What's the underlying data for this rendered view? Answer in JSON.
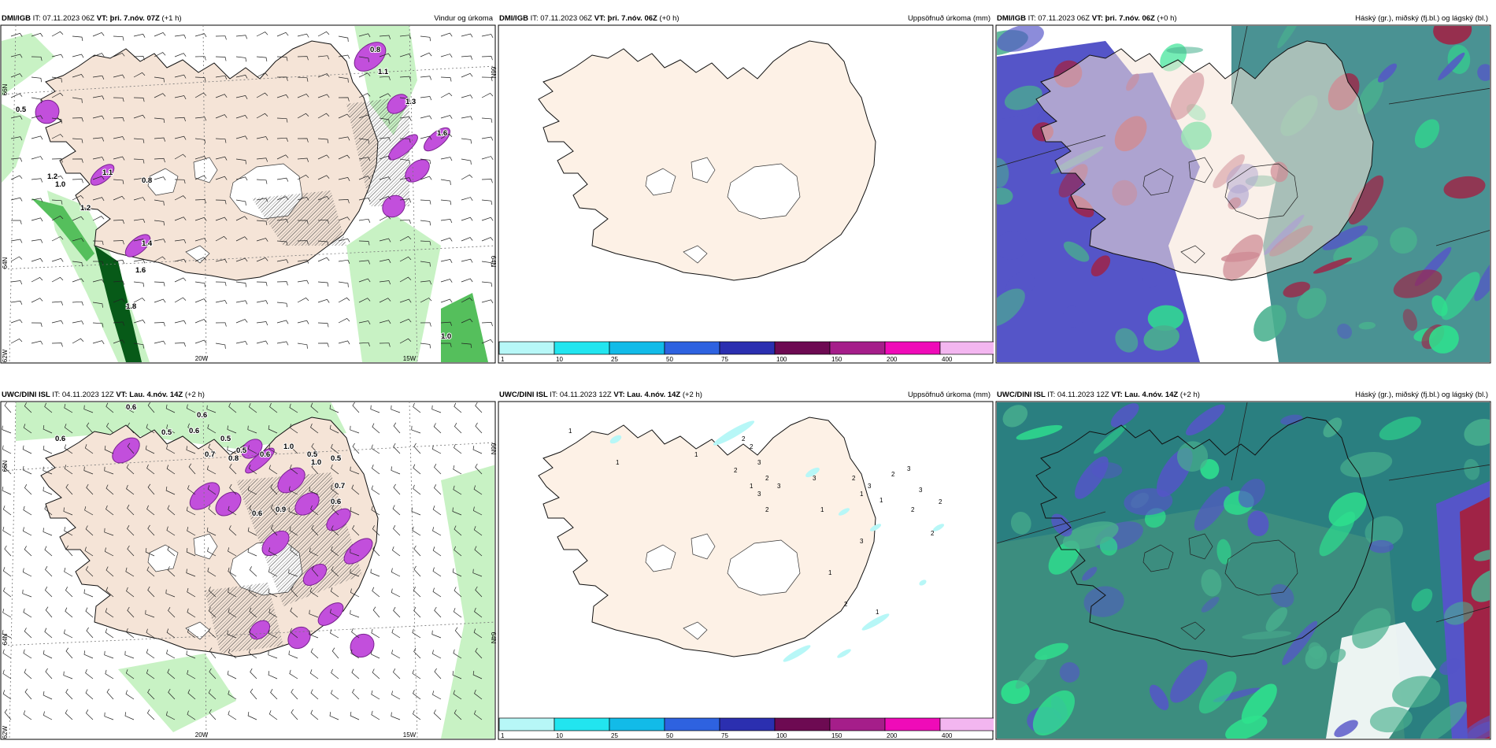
{
  "panels": [
    {
      "id": "p1",
      "kind": "wind",
      "header": {
        "model": "DMI/IGB",
        "it": "IT: 07.11.2023 06Z",
        "vt": "VT: þri. 7.nóv. 07Z",
        "lead": "(+1 h)",
        "product": "Vindur og úrkoma"
      },
      "lon_labels": [
        "20W",
        "15W"
      ],
      "lat_labels_left": [
        "66N",
        "64N",
        "62W"
      ],
      "lat_labels_right": [
        "66N",
        "64N"
      ],
      "values": [
        "0.8",
        "1.1",
        "0.5",
        "1.6",
        "1.1",
        "0.8",
        "1.0",
        "1.2",
        "1.6",
        "1.8",
        "1.4",
        "1.0",
        "1.2",
        "1.3"
      ]
    },
    {
      "id": "p2",
      "kind": "accum",
      "header": {
        "model": "DMI/IGB",
        "it": "IT: 07.11.2023 06Z",
        "vt": "VT: þri. 7.nóv. 06Z",
        "lead": "(+0 h)",
        "product": "Uppsöfnuð úrkoma (mm)"
      },
      "values": []
    },
    {
      "id": "p3",
      "kind": "cloud",
      "header": {
        "model": "DMI/IGB",
        "it": "IT: 07.11.2023 06Z",
        "vt": "VT: þri. 7.nóv. 06Z",
        "lead": "(+0 h)",
        "product": "Háský (gr.), miðský (fj.bl.) og lágský (bl.)"
      }
    },
    {
      "id": "p4",
      "kind": "wind",
      "header": {
        "model": "UWC/DINI ISL",
        "it": "IT: 04.11.2023 12Z",
        "vt": "VT: Lau. 4.nóv. 14Z",
        "lead": "(+2 h)",
        "product": ""
      },
      "lon_labels": [
        "20W",
        "15W"
      ],
      "lat_labels_left": [
        "66N",
        "64N",
        "62W"
      ],
      "lat_labels_right": [
        "66N",
        "64N"
      ],
      "values": [
        "0.6",
        "0.6",
        "0.6",
        "0.5",
        "0.6",
        "0.5",
        "0.7",
        "0.8",
        "0.5",
        "0.6",
        "1.0",
        "0.5",
        "0.5",
        "1.0",
        "0.6",
        "0.9",
        "0.7",
        "0.6"
      ]
    },
    {
      "id": "p5",
      "kind": "accum",
      "header": {
        "model": "UWC/DINI ISL",
        "it": "IT: 04.11.2023 12Z",
        "vt": "VT: Lau. 4.nóv. 14Z",
        "lead": "(+2 h)",
        "product": "Uppsöfnuð úrkoma (mm)"
      },
      "values": [
        "1",
        "1",
        "1",
        "2",
        "2",
        "3",
        "2",
        "3",
        "3",
        "2",
        "2",
        "1",
        "3",
        "1",
        "2",
        "1",
        "3",
        "2",
        "1",
        "3",
        "3",
        "2",
        "2",
        "2",
        "3",
        "1",
        "2",
        "1"
      ]
    },
    {
      "id": "p6",
      "kind": "cloud",
      "header": {
        "model": "UWC/DINI ISL",
        "it": "IT: 04.11.2023 12Z",
        "vt": "VT: Lau. 4.nóv. 14Z",
        "lead": "(+2 h)",
        "product": "Háský (gr.), miðský (fj.bl.) og lágský (bl.)"
      }
    }
  ],
  "colorbar": {
    "labels": [
      "1",
      "10",
      "25",
      "50",
      "75",
      "100",
      "150",
      "200",
      "400"
    ],
    "colors": [
      "#b7f7f7",
      "#22e5ef",
      "#12bbe8",
      "#2e62e0",
      "#2b2fb0",
      "#6d0a52",
      "#a51e8a",
      "#ef0bb8",
      "#f3b6f0"
    ]
  },
  "colors": {
    "land": "#f5e4d7",
    "land_accum": "#fdf1e6",
    "precip_light": "#c8f2c4",
    "precip_mid": "#55bf5c",
    "precip_dark": "#075a18",
    "magenta": "#c24fdc",
    "magenta_dark": "#7a2390",
    "cloud_low": "#5555c8",
    "cloud_mid": "#2a7f80",
    "cloud_high": "#a02346",
    "cloud_teal": "#49b08e",
    "cloud_green": "#2ee28e"
  }
}
